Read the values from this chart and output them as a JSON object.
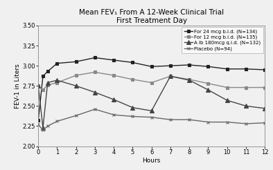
{
  "title_line1": "Mean FEV₁ From A 12-Week Clinical Trial",
  "title_line2": "First Treatment Day",
  "xlabel": "Hours",
  "ylabel": "FEV-1 in Liters",
  "xlim": [
    0,
    12
  ],
  "ylim": [
    2.0,
    3.5
  ],
  "xticks": [
    0,
    1,
    2,
    3,
    4,
    5,
    6,
    7,
    8,
    9,
    10,
    11,
    12
  ],
  "yticks": [
    2.0,
    2.25,
    2.5,
    2.75,
    3.0,
    3.25,
    3.5
  ],
  "series": [
    {
      "label": "For 24 mcg b.i.d. (N=134)",
      "marker": "s",
      "color": "#222222",
      "linewidth": 1.0,
      "markersize": 3.5,
      "x": [
        0,
        0.25,
        0.5,
        1,
        2,
        3,
        4,
        5,
        6,
        7,
        8,
        9,
        10,
        11,
        12
      ],
      "y": [
        2.32,
        2.87,
        2.93,
        3.03,
        3.05,
        3.1,
        3.07,
        3.04,
        2.99,
        3.0,
        3.01,
        2.99,
        2.96,
        2.96,
        2.95
      ]
    },
    {
      "label": "For 12 mcg b.i.d. (N=135)",
      "marker": "s",
      "color": "#888888",
      "linewidth": 1.0,
      "markersize": 3.5,
      "x": [
        0,
        0.25,
        0.5,
        1,
        2,
        3,
        4,
        5,
        6,
        7,
        8,
        9,
        10,
        11,
        12
      ],
      "y": [
        2.75,
        2.7,
        2.76,
        2.79,
        2.88,
        2.92,
        2.88,
        2.83,
        2.79,
        2.87,
        2.83,
        2.78,
        2.73,
        2.73,
        2.73
      ]
    },
    {
      "label": "A lb 180mcg q.i.d. (N=132)",
      "marker": "^",
      "color": "#444444",
      "linewidth": 1.0,
      "markersize": 4,
      "x": [
        0,
        0.25,
        0.5,
        1,
        2,
        3,
        4,
        5,
        6,
        7,
        8,
        9,
        10,
        11,
        12
      ],
      "y": [
        2.75,
        2.23,
        2.79,
        2.82,
        2.75,
        2.67,
        2.58,
        2.48,
        2.44,
        2.87,
        2.82,
        2.7,
        2.57,
        2.5,
        2.47
      ]
    },
    {
      "label": "Placebo (N=94)",
      "marker": "x",
      "color": "#666666",
      "linewidth": 1.0,
      "markersize": 3.5,
      "x": [
        0,
        0.25,
        0.5,
        1,
        2,
        3,
        4,
        5,
        6,
        7,
        8,
        9,
        10,
        11,
        12
      ],
      "y": [
        2.27,
        2.2,
        2.25,
        2.31,
        2.38,
        2.46,
        2.39,
        2.37,
        2.36,
        2.33,
        2.33,
        2.3,
        2.3,
        2.28,
        2.29
      ]
    }
  ],
  "background_color": "#f0f0f0",
  "plot_bg_color": "#f0f0f0",
  "legend_fontsize": 5.0,
  "title_fontsize": 7.5,
  "axis_label_fontsize": 6.5,
  "tick_fontsize": 6.0
}
